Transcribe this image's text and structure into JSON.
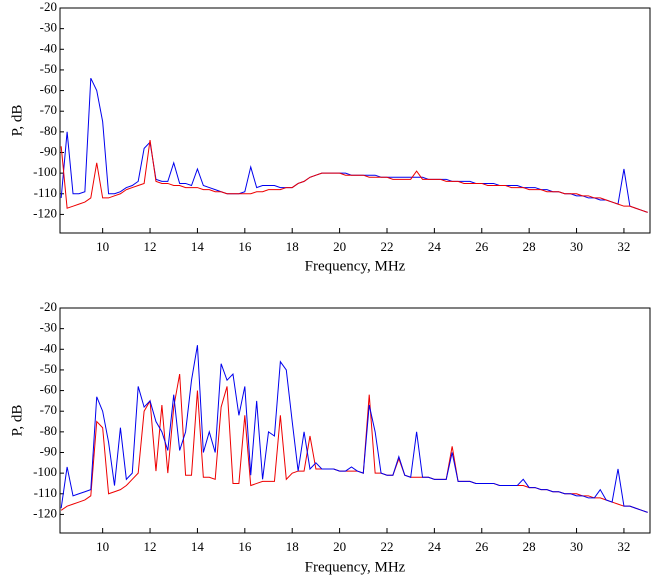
{
  "chart_data": [
    {
      "type": "line",
      "x_label": "Frequency, MHz",
      "y_label": "P, dB",
      "xlim": [
        8.2,
        33.1
      ],
      "ylim": [
        -129,
        -20
      ],
      "xticks": [
        10,
        12,
        14,
        16,
        18,
        20,
        22,
        24,
        26,
        28,
        30,
        32
      ],
      "yticks": [
        -20,
        -30,
        -40,
        -50,
        -60,
        -70,
        -80,
        -90,
        -100,
        -110,
        -120
      ],
      "x": [
        8.25,
        8.5,
        8.75,
        9,
        9.25,
        9.5,
        9.75,
        10,
        10.25,
        10.5,
        10.75,
        11,
        11.25,
        11.5,
        11.75,
        12,
        12.25,
        12.5,
        12.75,
        13,
        13.25,
        13.5,
        13.75,
        14,
        14.25,
        14.5,
        14.75,
        15,
        15.25,
        15.5,
        15.75,
        16,
        16.25,
        16.5,
        16.75,
        17,
        17.25,
        17.5,
        17.75,
        18,
        18.25,
        18.5,
        18.75,
        19,
        19.25,
        19.5,
        19.75,
        20,
        20.25,
        20.5,
        20.75,
        21,
        21.25,
        21.5,
        21.75,
        22,
        22.25,
        22.5,
        22.75,
        23,
        23.25,
        23.5,
        23.75,
        24,
        24.25,
        24.5,
        24.75,
        25,
        25.25,
        25.5,
        25.75,
        26,
        26.25,
        26.5,
        26.75,
        27,
        27.25,
        27.5,
        27.75,
        28,
        28.25,
        28.5,
        28.75,
        29,
        29.25,
        29.5,
        29.75,
        30,
        30.25,
        30.5,
        30.75,
        31,
        31.25,
        31.5,
        31.75,
        32,
        32.25,
        32.5,
        32.75,
        33
      ],
      "series": [
        {
          "color": "#0000ee",
          "values": [
            -112,
            -80,
            -110,
            -110,
            -109,
            -54,
            -60,
            -75,
            -110,
            -110,
            -109,
            -107,
            -106,
            -104,
            -88,
            -85,
            -103,
            -104,
            -104,
            -95,
            -105,
            -105,
            -106,
            -98,
            -106,
            -107,
            -108,
            -109,
            -110,
            -110,
            -110,
            -109,
            -97,
            -107,
            -106,
            -106,
            -106,
            -107,
            -107,
            -107,
            -105,
            -104,
            -102,
            -101,
            -100,
            -100,
            -100,
            -100,
            -100,
            -101,
            -101,
            -101,
            -101,
            -101,
            -102,
            -102,
            -102,
            -102,
            -102,
            -102,
            -102,
            -102,
            -103,
            -103,
            -103,
            -103,
            -104,
            -104,
            -104,
            -104,
            -105,
            -105,
            -105,
            -105,
            -106,
            -106,
            -106,
            -106,
            -107,
            -107,
            -107,
            -108,
            -108,
            -109,
            -109,
            -110,
            -110,
            -111,
            -111,
            -112,
            -112,
            -113,
            -113,
            -114,
            -115,
            -98,
            -116,
            -117,
            -118,
            -119
          ]
        },
        {
          "color": "#ee0000",
          "values": [
            -87,
            -117,
            -116,
            -115,
            -114,
            -112,
            -95,
            -112,
            -112,
            -111,
            -110,
            -108,
            -107,
            -106,
            -105,
            -84,
            -104,
            -105,
            -105,
            -106,
            -106,
            -107,
            -107,
            -107,
            -108,
            -108,
            -109,
            -109,
            -110,
            -110,
            -110,
            -110,
            -110,
            -109,
            -109,
            -108,
            -108,
            -108,
            -107,
            -107,
            -105,
            -104,
            -102,
            -101,
            -100,
            -100,
            -100,
            -100,
            -101,
            -101,
            -101,
            -101,
            -102,
            -102,
            -102,
            -102,
            -103,
            -103,
            -103,
            -103,
            -99,
            -103,
            -103,
            -103,
            -103,
            -104,
            -104,
            -104,
            -105,
            -105,
            -105,
            -105,
            -106,
            -106,
            -106,
            -106,
            -107,
            -107,
            -107,
            -108,
            -108,
            -108,
            -109,
            -109,
            -109,
            -110,
            -110,
            -110,
            -111,
            -111,
            -112,
            -112,
            -113,
            -114,
            -115,
            -116,
            -116,
            -117,
            -118,
            -119
          ]
        }
      ]
    },
    {
      "type": "line",
      "x_label": "Frequency, MHz",
      "y_label": "P, dB",
      "xlim": [
        8.2,
        33.1
      ],
      "ylim": [
        -129,
        -20
      ],
      "xticks": [
        10,
        12,
        14,
        16,
        18,
        20,
        22,
        24,
        26,
        28,
        30,
        32
      ],
      "yticks": [
        -20,
        -30,
        -40,
        -50,
        -60,
        -70,
        -80,
        -90,
        -100,
        -110,
        -120
      ],
      "x": [
        8.25,
        8.5,
        8.75,
        9,
        9.25,
        9.5,
        9.75,
        10,
        10.25,
        10.5,
        10.75,
        11,
        11.25,
        11.5,
        11.75,
        12,
        12.25,
        12.5,
        12.75,
        13,
        13.25,
        13.5,
        13.75,
        14,
        14.25,
        14.5,
        14.75,
        15,
        15.25,
        15.5,
        15.75,
        16,
        16.25,
        16.5,
        16.75,
        17,
        17.25,
        17.5,
        17.75,
        18,
        18.25,
        18.5,
        18.75,
        19,
        19.25,
        19.5,
        19.75,
        20,
        20.25,
        20.5,
        20.75,
        21,
        21.25,
        21.5,
        21.75,
        22,
        22.25,
        22.5,
        22.75,
        23,
        23.25,
        23.5,
        23.75,
        24,
        24.25,
        24.5,
        24.75,
        25,
        25.25,
        25.5,
        25.75,
        26,
        26.25,
        26.5,
        26.75,
        27,
        27.25,
        27.5,
        27.75,
        28,
        28.25,
        28.5,
        28.75,
        29,
        29.25,
        29.5,
        29.75,
        30,
        30.25,
        30.5,
        30.75,
        31,
        31.25,
        31.5,
        31.75,
        32,
        32.25,
        32.5,
        32.75,
        33
      ],
      "series": [
        {
          "color": "#ee0000",
          "values": [
            -118,
            -116,
            -115,
            -114,
            -113,
            -111,
            -75,
            -78,
            -110,
            -109,
            -108,
            -106,
            -103,
            -100,
            -70,
            -65,
            -99,
            -67,
            -100,
            -68,
            -52,
            -101,
            -101,
            -60,
            -102,
            -102,
            -103,
            -68,
            -58,
            -105,
            -105,
            -72,
            -106,
            -105,
            -104,
            -104,
            -104,
            -72,
            -103,
            -100,
            -99,
            -99,
            -82,
            -98,
            -98,
            -98,
            -98,
            -99,
            -99,
            -99,
            -99,
            -100,
            -62,
            -100,
            -100,
            -101,
            -101,
            -93,
            -101,
            -102,
            -102,
            -102,
            -102,
            -103,
            -103,
            -103,
            -87,
            -104,
            -104,
            -104,
            -105,
            -105,
            -105,
            -105,
            -106,
            -106,
            -106,
            -106,
            -106,
            -107,
            -107,
            -108,
            -108,
            -109,
            -109,
            -110,
            -110,
            -110,
            -111,
            -111,
            -112,
            -112,
            -113,
            -114,
            -115,
            -116,
            -116,
            -117,
            -118,
            -119
          ]
        },
        {
          "color": "#0000ee",
          "values": [
            -117,
            -97,
            -111,
            -110,
            -109,
            -108,
            -63,
            -70,
            -85,
            -106,
            -78,
            -103,
            -100,
            -58,
            -68,
            -65,
            -75,
            -80,
            -89,
            -62,
            -89,
            -80,
            -55,
            -38,
            -90,
            -80,
            -90,
            -47,
            -55,
            -52,
            -72,
            -58,
            -101,
            -65,
            -103,
            -80,
            -82,
            -46,
            -50,
            -75,
            -99,
            -80,
            -98,
            -95,
            -98,
            -98,
            -98,
            -99,
            -99,
            -97,
            -99,
            -100,
            -67,
            -80,
            -100,
            -101,
            -101,
            -92,
            -101,
            -102,
            -80,
            -102,
            -102,
            -103,
            -103,
            -103,
            -90,
            -104,
            -104,
            -104,
            -105,
            -105,
            -105,
            -105,
            -106,
            -106,
            -106,
            -106,
            -103,
            -107,
            -107,
            -108,
            -108,
            -109,
            -109,
            -110,
            -110,
            -111,
            -111,
            -112,
            -112,
            -108,
            -113,
            -114,
            -98,
            -116,
            -116,
            -117,
            -118,
            -119
          ]
        }
      ]
    }
  ]
}
